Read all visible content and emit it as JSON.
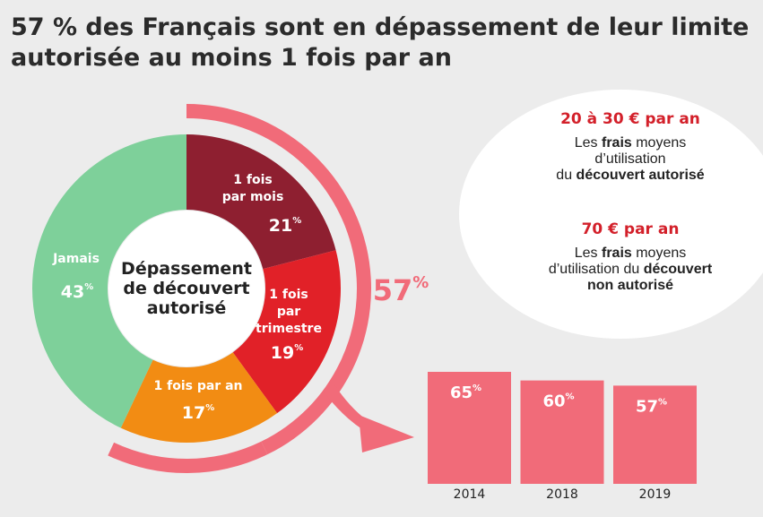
{
  "title_line1": "57 % des Français sont en dépassement de leur limite",
  "title_line2": "autorisée au moins 1 fois par an",
  "colors": {
    "dark_red": "#8e1f30",
    "red": "#e12128",
    "orange": "#f28c13",
    "green": "#7ed09a",
    "pink": "#f16b79",
    "stat_red": "#d3202a"
  },
  "chart_data": [
    {
      "type": "pie",
      "title": "Dépassement de découvert autorisé",
      "center_label": [
        "Dépassement",
        "de découvert",
        "autorisé"
      ],
      "slices": [
        {
          "label": [
            "1 fois",
            "par mois"
          ],
          "value": 21,
          "value_text": "21",
          "unit": "%",
          "color": "#8e1f30"
        },
        {
          "label": [
            "1 fois",
            "par",
            "trimestre"
          ],
          "value": 19,
          "value_text": "19",
          "unit": "%",
          "color": "#e12128"
        },
        {
          "label": [
            "1 fois par an"
          ],
          "value": 17,
          "value_text": "17",
          "unit": "%",
          "color": "#f28c13"
        },
        {
          "label": [
            "Jamais"
          ],
          "value": 43,
          "value_text": "43",
          "unit": "%",
          "color": "#7ed09a"
        }
      ],
      "highlight": {
        "value": 57,
        "value_text": "57",
        "unit": "%"
      }
    },
    {
      "type": "bar",
      "categories": [
        "2014",
        "2018",
        "2019"
      ],
      "values": [
        65,
        60,
        57
      ],
      "value_texts": [
        "65",
        "60",
        "57"
      ],
      "unit": "%",
      "ylim": [
        0,
        70
      ],
      "color": "#f16b79"
    }
  ],
  "stats": [
    {
      "value": "20 à 30 € par an",
      "desc": "Les <b>frais</b> moyens<br>d’utilisation<br>du <b>découvert autorisé</b>"
    },
    {
      "value": "70 € par an",
      "desc": "Les <b>frais</b> moyens<br>d’utilisation du <b>découvert</b><br><b>non autorisé</b>"
    }
  ]
}
